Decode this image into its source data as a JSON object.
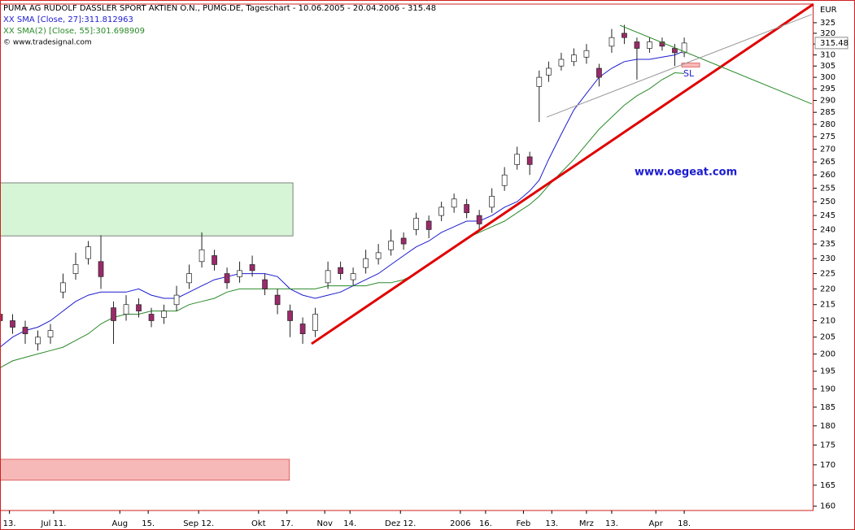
{
  "chart_data": {
    "type": "candlestick",
    "title": "PUMA AG RUDOLF DASSLER SPORT AKTIEN O.N., PUMG.DE, Tageschart - 10.06.2005 - 20.04.2006 - 315.48",
    "credit": "© www.tradesignal.com",
    "watermark": "www.oegeat.com",
    "unit": "EUR",
    "last_value": 315.48,
    "marker_label": "SL",
    "log_scale": true,
    "up_color": "#ffffff",
    "down_color": "#9a2a6a",
    "x": [
      0,
      4,
      8,
      12,
      16,
      20,
      24,
      28,
      32,
      36,
      40,
      44,
      48,
      52,
      56,
      60,
      64,
      68,
      72,
      76,
      80,
      84,
      88,
      92,
      96,
      100,
      104,
      108,
      112,
      116,
      120,
      124,
      128,
      132,
      136,
      140,
      144,
      148,
      152,
      156,
      160,
      164,
      168,
      171,
      174,
      178,
      182,
      186,
      190,
      194,
      198,
      202,
      206,
      210,
      214,
      217
    ],
    "open": [
      212,
      210,
      208,
      203,
      205,
      219,
      225,
      230,
      229,
      214,
      212,
      215,
      212,
      211,
      215,
      222,
      229,
      231,
      225,
      224,
      228,
      223,
      218,
      213,
      209,
      207,
      222,
      227,
      223,
      227,
      230,
      233,
      237,
      240,
      243,
      245,
      248,
      249,
      245,
      248,
      256,
      264,
      267,
      296,
      301,
      305,
      307,
      309,
      304,
      314,
      320,
      316,
      313,
      316,
      313,
      311
    ],
    "high": [
      214,
      212,
      210,
      207,
      209,
      225,
      232,
      236,
      238,
      216,
      218,
      217,
      214,
      215,
      221,
      228,
      239,
      233,
      227,
      229,
      231,
      225,
      220,
      215,
      211,
      214,
      229,
      229,
      227,
      233,
      235,
      240,
      239,
      246,
      245,
      250,
      253,
      251,
      247,
      255,
      263,
      271,
      269,
      303,
      307,
      311,
      313,
      315,
      306,
      322,
      324,
      318,
      318,
      318,
      315,
      318
    ],
    "low": [
      207,
      206,
      203,
      201,
      203,
      217,
      223,
      228,
      220,
      203,
      210,
      211,
      208,
      209,
      213,
      220,
      227,
      226,
      220,
      222,
      224,
      218,
      212,
      205,
      203,
      205,
      220,
      223,
      221,
      225,
      228,
      231,
      233,
      238,
      237,
      243,
      246,
      244,
      240,
      246,
      254,
      262,
      260,
      281,
      298,
      303,
      305,
      306,
      296,
      311,
      315,
      299,
      311,
      312,
      305,
      309
    ],
    "close": [
      210,
      208,
      206,
      205,
      207,
      222,
      228,
      234,
      224,
      210,
      215,
      213,
      210,
      213,
      218,
      225,
      233,
      228,
      222,
      226,
      226,
      220,
      215,
      210,
      206,
      212,
      226,
      225,
      225,
      230,
      232,
      236,
      235,
      244,
      240,
      248,
      251,
      246,
      242,
      252,
      260,
      268,
      264,
      300,
      304,
      308,
      310,
      312,
      300,
      318,
      318,
      313,
      316,
      314,
      311,
      315.48
    ],
    "series": [
      {
        "name": "XX SMA [Close, 27]:311.812963",
        "color": "#1c1cd0",
        "values": [
          202,
          205,
          207,
          208,
          210,
          213,
          216,
          218,
          219,
          219,
          219,
          220,
          218,
          217,
          217,
          219,
          221,
          223,
          224,
          225,
          225,
          225,
          224,
          220,
          218,
          217,
          218,
          219,
          221,
          223,
          225,
          228,
          231,
          234,
          236,
          239,
          241,
          243,
          243,
          245,
          248,
          250,
          254,
          258,
          266,
          276,
          286,
          293,
          300,
          304,
          307,
          308,
          308,
          309,
          310,
          311.8
        ]
      },
      {
        "name": "XX SMA(2) [Close, 55]:301.698909",
        "color": "#2a8a2a",
        "values": [
          196,
          198,
          199,
          200,
          201,
          202,
          204,
          206,
          209,
          211,
          212,
          212,
          213,
          213,
          213,
          215,
          216,
          217,
          219,
          220,
          220,
          220,
          220,
          220,
          220,
          220,
          221,
          221,
          221,
          221,
          222,
          222,
          223,
          225,
          228,
          231,
          234,
          237,
          239,
          241,
          243,
          246,
          249,
          252,
          256,
          261,
          266,
          272,
          278,
          283,
          288,
          292,
          295,
          299,
          302,
          301.7
        ]
      }
    ],
    "lines": [
      {
        "color": "#e00000",
        "x": [
          98.8,
          258
        ],
        "y": [
          203,
          334
        ]
      },
      {
        "color": "#2a8a2a",
        "x": [
          196.6,
          257.5
        ],
        "y": [
          323.8,
          288.5
        ]
      },
      {
        "color": "#999999",
        "x": [
          173.4,
          257.5
        ],
        "y": [
          283,
          329
        ]
      }
    ],
    "zones": [
      {
        "color": "#d6f5d6",
        "x": [
          0,
          92.9
        ],
        "y": [
          237.8,
          257
        ]
      },
      {
        "color": "#f7b8b8",
        "x": [
          0,
          91.8
        ],
        "y": [
          166.2,
          171.4
        ]
      },
      {
        "color": "#f7b8b8",
        "x": [
          216.2,
          221.9
        ],
        "y": [
          304.6,
          306.3
        ]
      }
    ],
    "xlim": [
      0,
      258
    ],
    "xticks": [
      {
        "value": 3,
        "label": "13."
      },
      {
        "value": 17,
        "label": "Jul 11."
      },
      {
        "value": 38,
        "label": "Aug"
      },
      {
        "value": 47,
        "label": "15."
      },
      {
        "value": 63,
        "label": "Sep 12."
      },
      {
        "value": 82,
        "label": "Okt"
      },
      {
        "value": 91,
        "label": "17."
      },
      {
        "value": 103,
        "label": "Nov"
      },
      {
        "value": 111,
        "label": "14."
      },
      {
        "value": 127,
        "label": "Dez 12."
      },
      {
        "value": 146,
        "label": "2006"
      },
      {
        "value": 154,
        "label": "16."
      },
      {
        "value": 166,
        "label": "Feb"
      },
      {
        "value": 175,
        "label": "13."
      },
      {
        "value": 186,
        "label": "Mrz"
      },
      {
        "value": 194,
        "label": "13."
      },
      {
        "value": 208,
        "label": "Apr"
      },
      {
        "value": 217,
        "label": "18."
      }
    ],
    "ylim": [
      159,
      334
    ],
    "yticks": [
      160,
      165,
      170,
      175,
      180,
      185,
      190,
      195,
      200,
      205,
      210,
      215,
      220,
      225,
      230,
      235,
      240,
      245,
      250,
      255,
      260,
      265,
      270,
      275,
      280,
      285,
      290,
      295,
      300,
      305,
      310,
      315,
      320,
      325
    ]
  }
}
